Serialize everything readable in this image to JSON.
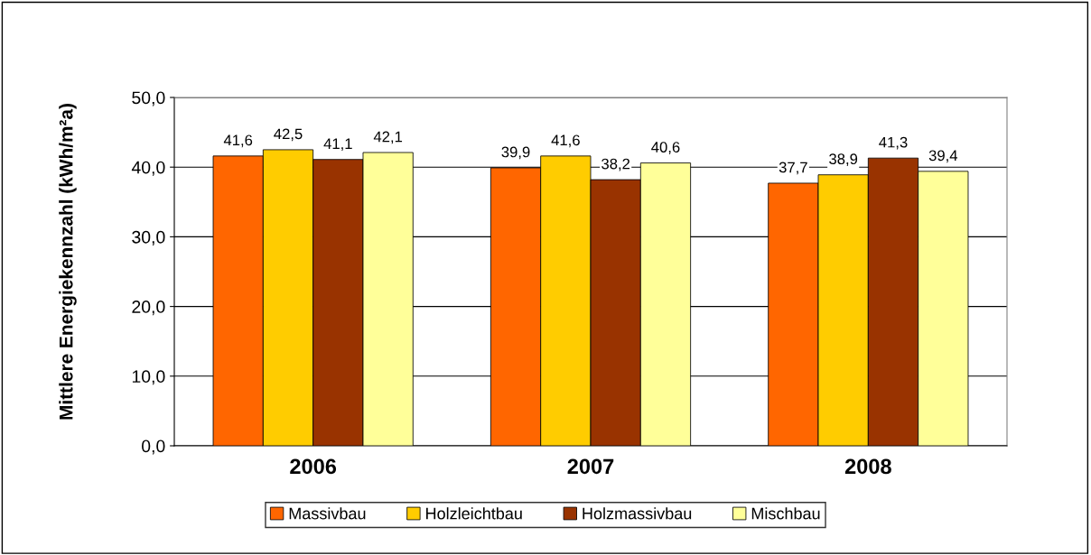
{
  "chart_data": {
    "type": "bar",
    "ylabel": "Mittlere Energiekennzahl (kWh/m²a)",
    "categories": [
      "2006",
      "2007",
      "2008"
    ],
    "series": [
      {
        "name": "Massivbau",
        "color": "#ff6600",
        "values": [
          41.6,
          39.9,
          37.7
        ],
        "value_labels": [
          "41,6",
          "39,9",
          "37,7"
        ]
      },
      {
        "name": "Holzleichtbau",
        "color": "#ffcc00",
        "values": [
          42.5,
          41.6,
          38.9
        ],
        "value_labels": [
          "42,5",
          "41,6",
          "38,9"
        ]
      },
      {
        "name": "Holzmassivbau",
        "color": "#993300",
        "values": [
          41.1,
          38.2,
          41.3
        ],
        "value_labels": [
          "41,1",
          "38,2",
          "41,3"
        ]
      },
      {
        "name": "Mischbau",
        "color": "#ffff99",
        "values": [
          42.1,
          40.6,
          39.4
        ],
        "value_labels": [
          "42,1",
          "40,6",
          "39,4"
        ]
      }
    ],
    "ylim": [
      0,
      50
    ],
    "yticks": [
      {
        "value": 0,
        "label": "0,0"
      },
      {
        "value": 10,
        "label": "10,0"
      },
      {
        "value": 20,
        "label": "20,0"
      },
      {
        "value": 30,
        "label": "30,0"
      },
      {
        "value": 40,
        "label": "40,0"
      },
      {
        "value": 50,
        "label": "50,0"
      }
    ],
    "grid": "y",
    "legend": "bottom"
  }
}
